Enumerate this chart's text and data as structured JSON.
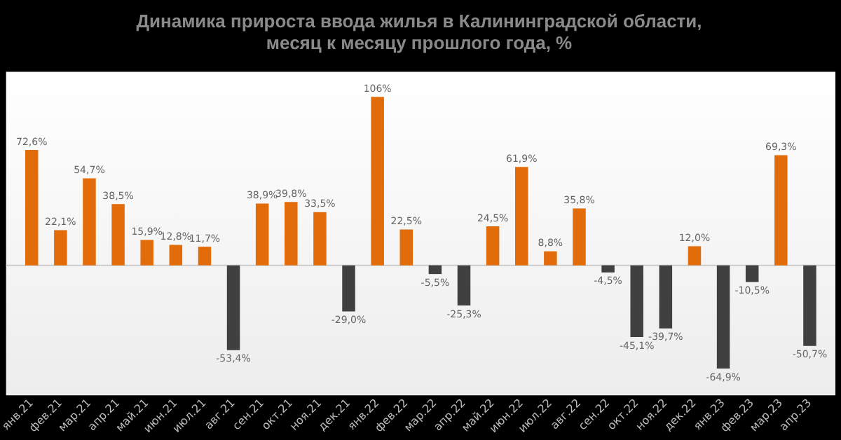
{
  "chart_data": {
    "type": "bar",
    "title": "Динамика прироста ввода жилья в Калининградской области,\nмесяц к месяцу прошлого года, %",
    "categories": [
      "янв.21",
      "фев.21",
      "мар.21",
      "апр.21",
      "май.21",
      "июн.21",
      "июл.21",
      "авг.21",
      "сен.21",
      "окт.21",
      "ноя.21",
      "дек.21",
      "янв.22",
      "фев.22",
      "мар.22",
      "апр.22",
      "май.22",
      "июн.22",
      "июл.22",
      "авг.22",
      "сен.22",
      "окт.22",
      "ноя.22",
      "дек.22",
      "янв.23",
      "фев.23",
      "мар.23",
      "апр.23"
    ],
    "values": [
      72.6,
      22.1,
      54.7,
      38.5,
      15.9,
      12.8,
      11.7,
      -53.4,
      38.9,
      39.8,
      33.5,
      -29.0,
      106,
      22.5,
      -5.5,
      -25.3,
      24.5,
      61.9,
      8.8,
      35.8,
      -4.5,
      -45.1,
      -39.7,
      12.0,
      -64.9,
      -10.5,
      69.3,
      -50.7
    ],
    "value_labels": [
      "72,6%",
      "22,1%",
      "54,7%",
      "38,5%",
      "15,9%",
      "12,8%",
      "11,7%",
      "-53,4%",
      "38,9%",
      "39,8%",
      "33,5%",
      "-29,0%",
      "106%",
      "22,5%",
      "-5,5%",
      "-25,3%",
      "24,5%",
      "61,9%",
      "8,8%",
      "35,8%",
      "-4,5%",
      "-45,1%",
      "-39,7%",
      "12,0%",
      "-64,9%",
      "-10,5%",
      "69,3%",
      "-50,7%"
    ],
    "colors": [
      "#e36c0a",
      "#e36c0a",
      "#e36c0a",
      "#e36c0a",
      "#e36c0a",
      "#e36c0a",
      "#e36c0a",
      "#404040",
      "#e36c0a",
      "#e36c0a",
      "#e36c0a",
      "#404040",
      "#e36c0a",
      "#e36c0a",
      "#404040",
      "#404040",
      "#e36c0a",
      "#e36c0a",
      "#e36c0a",
      "#e36c0a",
      "#404040",
      "#404040",
      "#404040",
      "#e36c0a",
      "#404040",
      "#404040",
      "#e36c0a",
      "#404040"
    ],
    "grid": false,
    "legend": false
  }
}
